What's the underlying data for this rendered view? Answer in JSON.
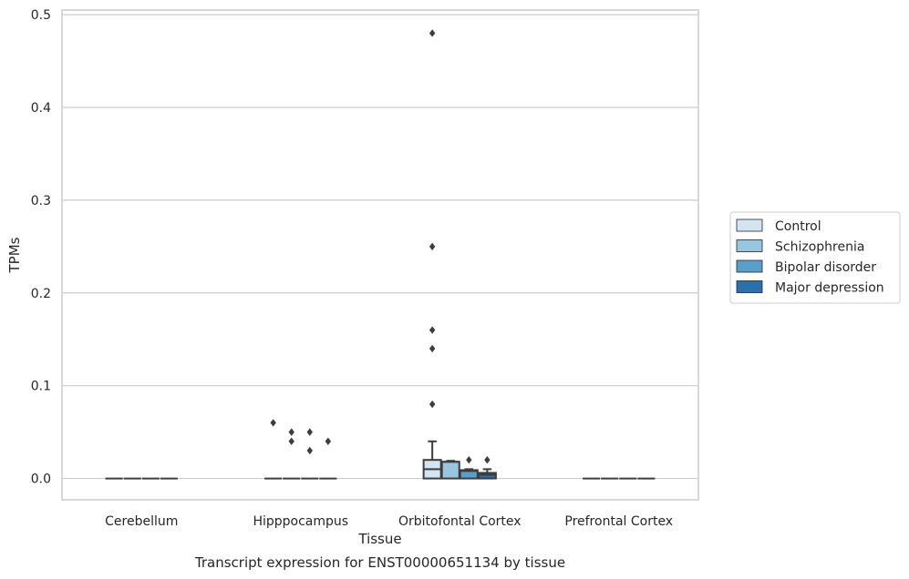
{
  "caption": "Transcript expression for ENST00000651134 by tissue",
  "chart_data": {
    "type": "box",
    "title": "",
    "xlabel": "Tissue",
    "ylabel": "TPMs",
    "ylim": [
      -0.023,
      0.505
    ],
    "yticks": [
      0.0,
      0.1,
      0.2,
      0.3,
      0.4,
      0.5
    ],
    "ytick_labels": [
      "0.0",
      "0.1",
      "0.2",
      "0.3",
      "0.4",
      "0.5"
    ],
    "grid": true,
    "legend_position": "right",
    "categories": [
      "Cerebellum",
      "Hipppocampus",
      "Orbitofontal Cortex",
      "Prefrontal Cortex"
    ],
    "series": [
      {
        "name": "Control",
        "color": "#d3e4f3",
        "boxes": [
          {
            "q1": 0,
            "median": 0,
            "q3": 0,
            "whisker_low": 0,
            "whisker_high": 0,
            "outliers": []
          },
          {
            "q1": 0,
            "median": 0,
            "q3": 0,
            "whisker_low": 0,
            "whisker_high": 0,
            "outliers": [
              0.06
            ]
          },
          {
            "q1": 0,
            "median": 0.01,
            "q3": 0.02,
            "whisker_low": 0,
            "whisker_high": 0.04,
            "outliers": [
              0.48,
              0.25,
              0.16,
              0.14,
              0.08
            ]
          },
          {
            "q1": 0,
            "median": 0,
            "q3": 0,
            "whisker_low": 0,
            "whisker_high": 0,
            "outliers": []
          }
        ]
      },
      {
        "name": "Schizophrenia",
        "color": "#9ac5e0",
        "boxes": [
          {
            "q1": 0,
            "median": 0,
            "q3": 0,
            "whisker_low": 0,
            "whisker_high": 0,
            "outliers": []
          },
          {
            "q1": 0,
            "median": 0,
            "q3": 0,
            "whisker_low": 0,
            "whisker_high": 0,
            "outliers": [
              0.05,
              0.04
            ]
          },
          {
            "q1": 0,
            "median": 0.018,
            "q3": 0.018,
            "whisker_low": 0,
            "whisker_high": 0.019,
            "outliers": []
          },
          {
            "q1": 0,
            "median": 0,
            "q3": 0,
            "whisker_low": 0,
            "whisker_high": 0,
            "outliers": []
          }
        ]
      },
      {
        "name": "Bipolar disorder",
        "color": "#5a9ec9",
        "boxes": [
          {
            "q1": 0,
            "median": 0,
            "q3": 0,
            "whisker_low": 0,
            "whisker_high": 0,
            "outliers": []
          },
          {
            "q1": 0,
            "median": 0,
            "q3": 0,
            "whisker_low": 0,
            "whisker_high": 0,
            "outliers": [
              0.05,
              0.03
            ]
          },
          {
            "q1": 0,
            "median": 0.008,
            "q3": 0.009,
            "whisker_low": 0,
            "whisker_high": 0.01,
            "outliers": [
              0.02
            ]
          },
          {
            "q1": 0,
            "median": 0,
            "q3": 0,
            "whisker_low": 0,
            "whisker_high": 0,
            "outliers": []
          }
        ]
      },
      {
        "name": "Major depression",
        "color": "#2c6fad",
        "boxes": [
          {
            "q1": 0,
            "median": 0,
            "q3": 0,
            "whisker_low": 0,
            "whisker_high": 0,
            "outliers": []
          },
          {
            "q1": 0,
            "median": 0,
            "q3": 0,
            "whisker_low": 0,
            "whisker_high": 0,
            "outliers": [
              0.04
            ]
          },
          {
            "q1": 0,
            "median": 0.004,
            "q3": 0.006,
            "whisker_low": 0,
            "whisker_high": 0.01,
            "outliers": [
              0.02
            ]
          },
          {
            "q1": 0,
            "median": 0,
            "q3": 0,
            "whisker_low": 0,
            "whisker_high": 0,
            "outliers": []
          }
        ]
      }
    ],
    "colors": {
      "grid": "#cccccc",
      "frame": "#cccccc",
      "line": "#3d3d3d",
      "outlier": "#3d3d3d"
    }
  }
}
